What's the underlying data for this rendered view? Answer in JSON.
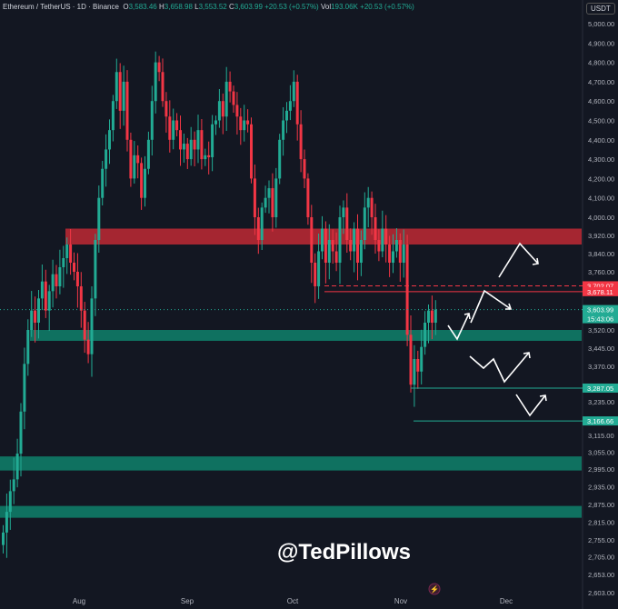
{
  "header": {
    "symbol": "Ethereum / TetherUS · 1D · Binance",
    "o_label": "O",
    "o": "3,583.46",
    "h_label": "H",
    "h": "3,658.98",
    "l_label": "L",
    "l": "3,553.52",
    "c_label": "C",
    "c": "3,603.99",
    "change": "+20.53 (+0.57%)",
    "vol_label": "Vol",
    "vol": "193.06K",
    "vol_change": "+20.53 (+0.57%)"
  },
  "currency": "USDT",
  "watermark": "@TedPillows",
  "colors": {
    "up": "#22ab94",
    "down": "#f23645",
    "bg": "#131722",
    "zone_red": "#b22833",
    "zone_green": "#0f7a66"
  },
  "chart_data": {
    "type": "candlestick",
    "x_start": "Jul 10",
    "x_ticks": [
      "Aug",
      "Sep",
      "Oct",
      "Nov",
      "Dec"
    ],
    "y_ticks": [
      "5,000.00",
      "4,900.00",
      "4,800.00",
      "4,700.00",
      "4,600.00",
      "4,500.00",
      "4,400.00",
      "4,300.00",
      "4,200.00",
      "4,100.00",
      "4,000.00",
      "3,920.00",
      "3,840.00",
      "3,760.00",
      "3,520.00",
      "3,445.00",
      "3,370.00",
      "3,235.00",
      "3,115.00",
      "3,055.00",
      "2,995.00",
      "2,935.00",
      "2,875.00",
      "2,815.00",
      "2,755.00",
      "2,705.00",
      "2,653.00",
      "2,603.00"
    ],
    "closes": [
      2780,
      2850,
      2920,
      2960,
      3050,
      3200,
      3380,
      3520,
      3600,
      3550,
      3650,
      3720,
      3600,
      3680,
      3750,
      3700,
      3780,
      3820,
      3880,
      3800,
      3760,
      3700,
      3600,
      3480,
      3420,
      3650,
      3900,
      4100,
      4250,
      4350,
      4450,
      4600,
      4750,
      4550,
      4700,
      4400,
      4200,
      4320,
      4280,
      4100,
      4250,
      4400,
      4600,
      4800,
      4750,
      4600,
      4520,
      4400,
      4500,
      4450,
      4350,
      4380,
      4300,
      4400,
      4350,
      4450,
      4300,
      4320,
      4310,
      4480,
      4500,
      4600,
      4520,
      4700,
      4650,
      4580,
      4520,
      4450,
      4500,
      4480,
      4200,
      4000,
      3900,
      4050,
      4100,
      4150,
      4000,
      4200,
      4400,
      4500,
      4550,
      4600,
      4700,
      4480,
      4300,
      4200,
      4000,
      3800,
      3700,
      3850,
      3950,
      3800,
      3900,
      3850,
      3800,
      4000,
      4050,
      3900,
      3850,
      3950,
      3800,
      3900,
      4050,
      4100,
      4000,
      3900,
      3850,
      3950,
      3880,
      3800,
      3850,
      3900,
      3800,
      3880,
      3500,
      3300,
      3400,
      3350,
      3450,
      3550,
      3600,
      3550,
      3604
    ],
    "zones": [
      {
        "type": "resistance",
        "from": 3880,
        "to": 3950
      },
      {
        "type": "support",
        "from": 3475,
        "to": 3520
      },
      {
        "type": "support",
        "from": 2990,
        "to": 3040
      },
      {
        "type": "support",
        "from": 2830,
        "to": 2870
      }
    ],
    "price_labels": [
      {
        "value": "3,702.07",
        "color": "#f23645",
        "line": "dashed"
      },
      {
        "value": "3,678.11",
        "color": "#f23645",
        "line": "solid"
      },
      {
        "value": "3,603.99",
        "sub": "15:43:06",
        "color": "#22ab94",
        "line": "dotted"
      },
      {
        "value": "3,287.05",
        "color": "#22ab94",
        "line": "solid"
      },
      {
        "value": "3,166.66",
        "color": "#22ab94",
        "line": "solid"
      }
    ]
  }
}
